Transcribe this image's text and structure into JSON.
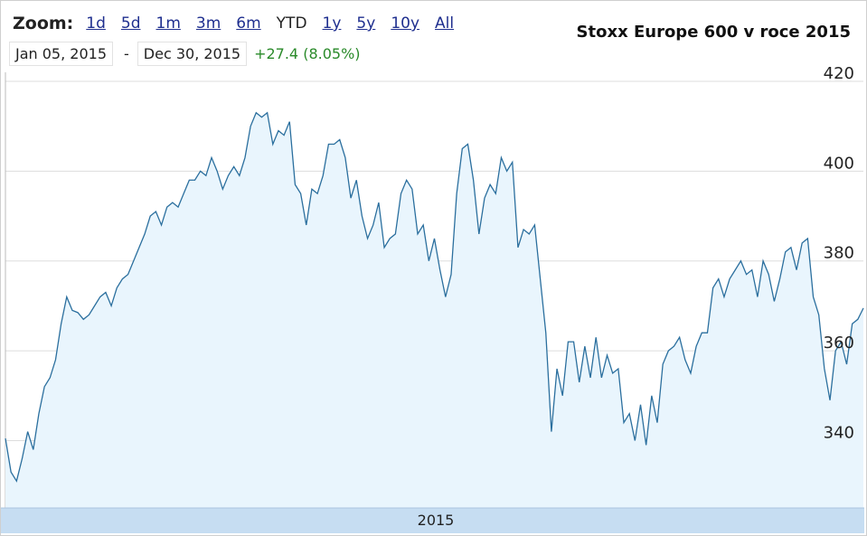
{
  "zoom": {
    "label": "Zoom:",
    "options": [
      "1d",
      "5d",
      "1m",
      "3m",
      "6m",
      "YTD",
      "1y",
      "5y",
      "10y",
      "All"
    ],
    "active": "YTD"
  },
  "range": {
    "start": "Jan 05, 2015",
    "separator": "-",
    "end": "Dec 30, 2015",
    "change": "+27.4 (8.05%)"
  },
  "colors": {
    "line": "#2b6f9e",
    "fill": "#e9f5fd",
    "navigator": "#c6ddf2",
    "grid": "#dddddd",
    "change_positive": "#2a8a2a"
  },
  "chart_data": {
    "type": "area",
    "title": "Stoxx Europe 600 v roce 2015",
    "xlabel": "2015",
    "ylabel": "",
    "ylim": [
      325,
      422
    ],
    "yticks": [
      340,
      360,
      380,
      400,
      420
    ],
    "grid": true,
    "series": [
      {
        "values": [
          340.5,
          333,
          331,
          336,
          342,
          338,
          346,
          352,
          354,
          358,
          366,
          372,
          369,
          368.5,
          367,
          368,
          370,
          372,
          373,
          370,
          374,
          376,
          377,
          380,
          383,
          386,
          390,
          391,
          388,
          392,
          393,
          392,
          395,
          398,
          398,
          400,
          399,
          403,
          400,
          396,
          399,
          401,
          399,
          403,
          410,
          413,
          412,
          413,
          406,
          409,
          408,
          411,
          397,
          395,
          388,
          396,
          395,
          399,
          406,
          406,
          407,
          403,
          394,
          398,
          390,
          385,
          388,
          393,
          383,
          385,
          386,
          395,
          398,
          396,
          386,
          388,
          380,
          385,
          378,
          372,
          377,
          395,
          405,
          406,
          398,
          386,
          394,
          397,
          395,
          403,
          400,
          402,
          383,
          387,
          386,
          388,
          376,
          364,
          342,
          356,
          350,
          362,
          362,
          353,
          361,
          354,
          363,
          354,
          359,
          355,
          356,
          344,
          346,
          340,
          348,
          339,
          350,
          344,
          357,
          360,
          361,
          363,
          358,
          355,
          361,
          364,
          364,
          374,
          376,
          372,
          376,
          378,
          380,
          377,
          378,
          372,
          380,
          377,
          371,
          376,
          382,
          383,
          378,
          384,
          385,
          372,
          368,
          356,
          349,
          360,
          362,
          357,
          366,
          367,
          369.5
        ]
      }
    ]
  }
}
